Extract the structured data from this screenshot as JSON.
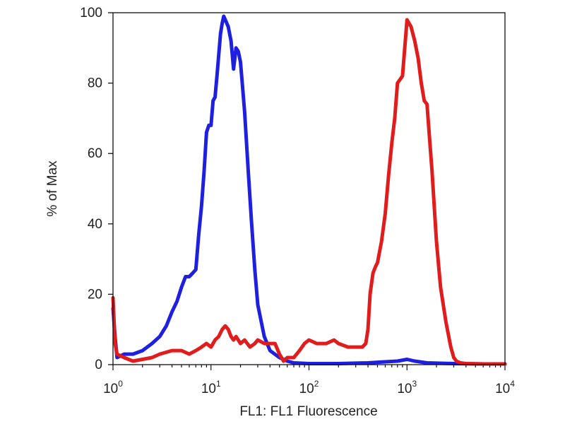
{
  "chart_data": {
    "type": "line",
    "xlabel": "FL1: FL1 Fluorescence",
    "ylabel": "% of Max",
    "x_scale": "log10",
    "xlim": [
      1,
      10000
    ],
    "ylim": [
      0,
      100
    ],
    "x_tick_labels": [
      {
        "value": 1,
        "base": "10",
        "exp": "0"
      },
      {
        "value": 10,
        "base": "10",
        "exp": "1"
      },
      {
        "value": 100,
        "base": "10",
        "exp": "2"
      },
      {
        "value": 1000,
        "base": "10",
        "exp": "3"
      },
      {
        "value": 10000,
        "base": "10",
        "exp": "4"
      }
    ],
    "y_ticks": [
      0,
      20,
      40,
      60,
      80,
      100
    ],
    "y_tick_labels": [
      "0",
      "20",
      "40",
      "60",
      "80",
      "100"
    ],
    "grid": false,
    "series": [
      {
        "color": "#1f1fe0",
        "x": [
          1.0,
          1.05,
          1.1,
          1.3,
          1.6,
          2.0,
          2.5,
          3.0,
          3.5,
          4.0,
          4.5,
          5.0,
          5.5,
          6.0,
          6.5,
          7.0,
          7.5,
          8.0,
          8.5,
          9.0,
          9.5,
          10.0,
          10.5,
          11.0,
          11.5,
          12.0,
          12.5,
          13.0,
          13.5,
          14.0,
          15.0,
          16.0,
          17.0,
          18.0,
          19.0,
          20.0,
          22.0,
          24.0,
          26.0,
          28.0,
          30.0,
          35.0,
          40.0,
          50.0,
          60.0,
          70.0,
          100.0,
          200.0,
          400.0,
          600.0,
          800.0,
          1000.0,
          1200.0,
          1600.0,
          3000.0,
          6000.0,
          10000.0
        ],
        "y": [
          16,
          8,
          2,
          3,
          3,
          4,
          6,
          8,
          11,
          15,
          18,
          22,
          25,
          25,
          26,
          27,
          37,
          45,
          55,
          66,
          68,
          68,
          75,
          76,
          82,
          88,
          94,
          97,
          99,
          98,
          96,
          92,
          84,
          90,
          89,
          86,
          72,
          55,
          40,
          27,
          17,
          8,
          4,
          2,
          1,
          0.5,
          0.3,
          0.3,
          0.5,
          0.8,
          1,
          1.5,
          1,
          0.5,
          0.3,
          0.2,
          0.2
        ]
      },
      {
        "color": "#e01c1c",
        "x": [
          1.0,
          1.05,
          1.1,
          1.3,
          1.6,
          2.0,
          2.5,
          3.0,
          4.0,
          5.0,
          6.0,
          7.0,
          8.0,
          9.0,
          10.0,
          11.0,
          12.0,
          13.0,
          14.0,
          15.0,
          16.0,
          17.0,
          18.0,
          20.0,
          22.0,
          25.0,
          28.0,
          30.0,
          35.0,
          40.0,
          45.0,
          50.0,
          55.0,
          60.0,
          70.0,
          80.0,
          90.0,
          100.0,
          120.0,
          150.0,
          180.0,
          200.0,
          250.0,
          300.0,
          350.0,
          380.0,
          400.0,
          420.0,
          450.0,
          480.0,
          500.0,
          550.0,
          600.0,
          650.0,
          700.0,
          750.0,
          800.0,
          900.0,
          1000.0,
          1100.0,
          1200.0,
          1300.0,
          1400.0,
          1500.0,
          1600.0,
          1800.0,
          2000.0,
          2200.0,
          2500.0,
          2800.0,
          3000.0,
          3200.0,
          3500.0,
          4000.0,
          6000.0,
          10000.0
        ],
        "y": [
          19,
          6,
          3,
          2,
          1,
          1.5,
          2,
          3,
          4,
          4,
          3,
          4,
          5,
          6,
          5,
          7,
          8,
          10,
          11,
          10,
          8,
          7,
          8,
          6,
          7,
          5,
          6,
          7,
          6,
          6,
          6,
          3,
          1,
          2,
          2,
          4,
          6,
          7,
          6,
          6,
          7,
          6,
          5,
          5,
          5,
          6,
          10,
          20,
          26,
          28,
          29,
          35,
          43,
          54,
          63,
          70,
          80,
          82,
          98,
          96,
          92,
          87,
          80,
          75,
          74,
          55,
          35,
          22,
          12,
          5,
          2,
          1,
          0.5,
          0.3,
          0.2,
          0.2
        ]
      }
    ]
  }
}
